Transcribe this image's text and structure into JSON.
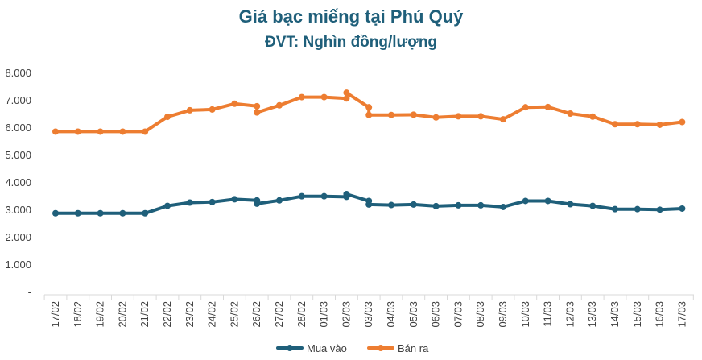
{
  "chart_data": {
    "type": "line",
    "title": "Giá bạc miếng tại Phú Quý",
    "subtitle": "ĐVT: Nghìn đồng/lượng",
    "xlabel": "",
    "ylabel": "",
    "categories": [
      "17/02",
      "18/02",
      "19/02",
      "20/02",
      "21/02",
      "22/02",
      "23/02",
      "24/02",
      "25/02",
      "26/02",
      "27/02",
      "28/02",
      "01/03",
      "02/03",
      "03/03",
      "04/03",
      "05/03",
      "06/03",
      "07/03",
      "08/03",
      "09/03",
      "10/03",
      "11/03",
      "12/03",
      "13/03",
      "14/03",
      "15/03",
      "16/03",
      "17/03"
    ],
    "y_ticks": [
      "-",
      "1.000",
      "2.000",
      "3.000",
      "4.000",
      "5.000",
      "6.000",
      "7.000",
      "8.000"
    ],
    "ylim": [
      0,
      8000
    ],
    "grid": false,
    "legend_position": "bottom",
    "series": [
      {
        "name": "Mua vào",
        "color": "#1f5f7a",
        "points": [
          [
            0,
            2860
          ],
          [
            1,
            2860
          ],
          [
            2,
            2860
          ],
          [
            3,
            2860
          ],
          [
            4,
            2860
          ],
          [
            5,
            3130
          ],
          [
            6,
            3250
          ],
          [
            7,
            3270
          ],
          [
            8,
            3370
          ],
          [
            9,
            3330
          ],
          [
            9,
            3210
          ],
          [
            10,
            3330
          ],
          [
            11,
            3480
          ],
          [
            12,
            3480
          ],
          [
            13,
            3460
          ],
          [
            13,
            3560
          ],
          [
            14,
            3310
          ],
          [
            14,
            3180
          ],
          [
            15,
            3160
          ],
          [
            16,
            3180
          ],
          [
            17,
            3120
          ],
          [
            18,
            3150
          ],
          [
            19,
            3150
          ],
          [
            20,
            3090
          ],
          [
            21,
            3310
          ],
          [
            22,
            3310
          ],
          [
            23,
            3190
          ],
          [
            24,
            3130
          ],
          [
            25,
            3010
          ],
          [
            26,
            3010
          ],
          [
            27,
            2990
          ],
          [
            28,
            3030
          ]
        ]
      },
      {
        "name": "Bán ra",
        "color": "#ed7d31",
        "points": [
          [
            0,
            5840
          ],
          [
            1,
            5840
          ],
          [
            2,
            5840
          ],
          [
            3,
            5840
          ],
          [
            4,
            5840
          ],
          [
            5,
            6380
          ],
          [
            6,
            6620
          ],
          [
            7,
            6650
          ],
          [
            8,
            6860
          ],
          [
            9,
            6770
          ],
          [
            9,
            6540
          ],
          [
            10,
            6800
          ],
          [
            11,
            7100
          ],
          [
            12,
            7100
          ],
          [
            13,
            7050
          ],
          [
            13,
            7260
          ],
          [
            14,
            6730
          ],
          [
            14,
            6450
          ],
          [
            15,
            6450
          ],
          [
            16,
            6460
          ],
          [
            17,
            6360
          ],
          [
            18,
            6400
          ],
          [
            19,
            6400
          ],
          [
            20,
            6290
          ],
          [
            21,
            6730
          ],
          [
            22,
            6740
          ],
          [
            23,
            6500
          ],
          [
            24,
            6390
          ],
          [
            25,
            6110
          ],
          [
            26,
            6110
          ],
          [
            27,
            6090
          ],
          [
            28,
            6190
          ]
        ]
      }
    ]
  }
}
